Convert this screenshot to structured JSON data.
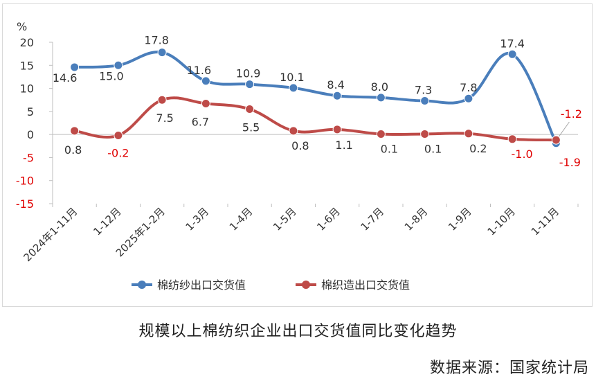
{
  "chart_data": {
    "type": "line",
    "ylabel": "%",
    "ylim": [
      -15,
      20
    ],
    "yticks": [
      "20",
      "15",
      "10",
      "5",
      "0",
      "-5",
      "-10",
      "-15"
    ],
    "ytick_values": [
      20,
      15,
      10,
      5,
      0,
      -5,
      -10,
      -15
    ],
    "categories": [
      "2024年1-11月",
      "1-12月",
      "2025年1-2月",
      "1-3月",
      "1-4月",
      "1-5月",
      "1-6月",
      "1-7月",
      "1-8月",
      "1-9月",
      "1-10月",
      "1-11月"
    ],
    "series": [
      {
        "name": "棉纺纱出口交货值",
        "color": "#4a7ebb",
        "values": [
          14.6,
          15.0,
          17.8,
          11.6,
          10.9,
          10.1,
          8.4,
          8.0,
          7.3,
          7.8,
          17.4,
          -1.9
        ],
        "labels": [
          "14.6",
          "15.0",
          "17.8",
          "11.6",
          "10.9",
          "10.1",
          "8.4",
          "8.0",
          "7.3",
          "7.8",
          "17.4",
          "-1.9"
        ]
      },
      {
        "name": "棉织造出口交货值",
        "color": "#be4b48",
        "values": [
          0.8,
          -0.2,
          7.5,
          6.7,
          5.5,
          0.8,
          1.1,
          0.1,
          0.1,
          0.2,
          -1.0,
          -1.2
        ],
        "labels": [
          "0.8",
          "-0.2",
          "7.5",
          "6.7",
          "5.5",
          "0.8",
          "1.1",
          "0.1",
          "0.1",
          "0.2",
          "-1.0",
          "-1.2"
        ]
      }
    ],
    "negative_label_color": "#e00000",
    "grid": false,
    "legend_position": "bottom"
  },
  "caption": "规模以上棉纺织企业出口交货值同比变化趋势",
  "source": "数据来源：国家统计局"
}
